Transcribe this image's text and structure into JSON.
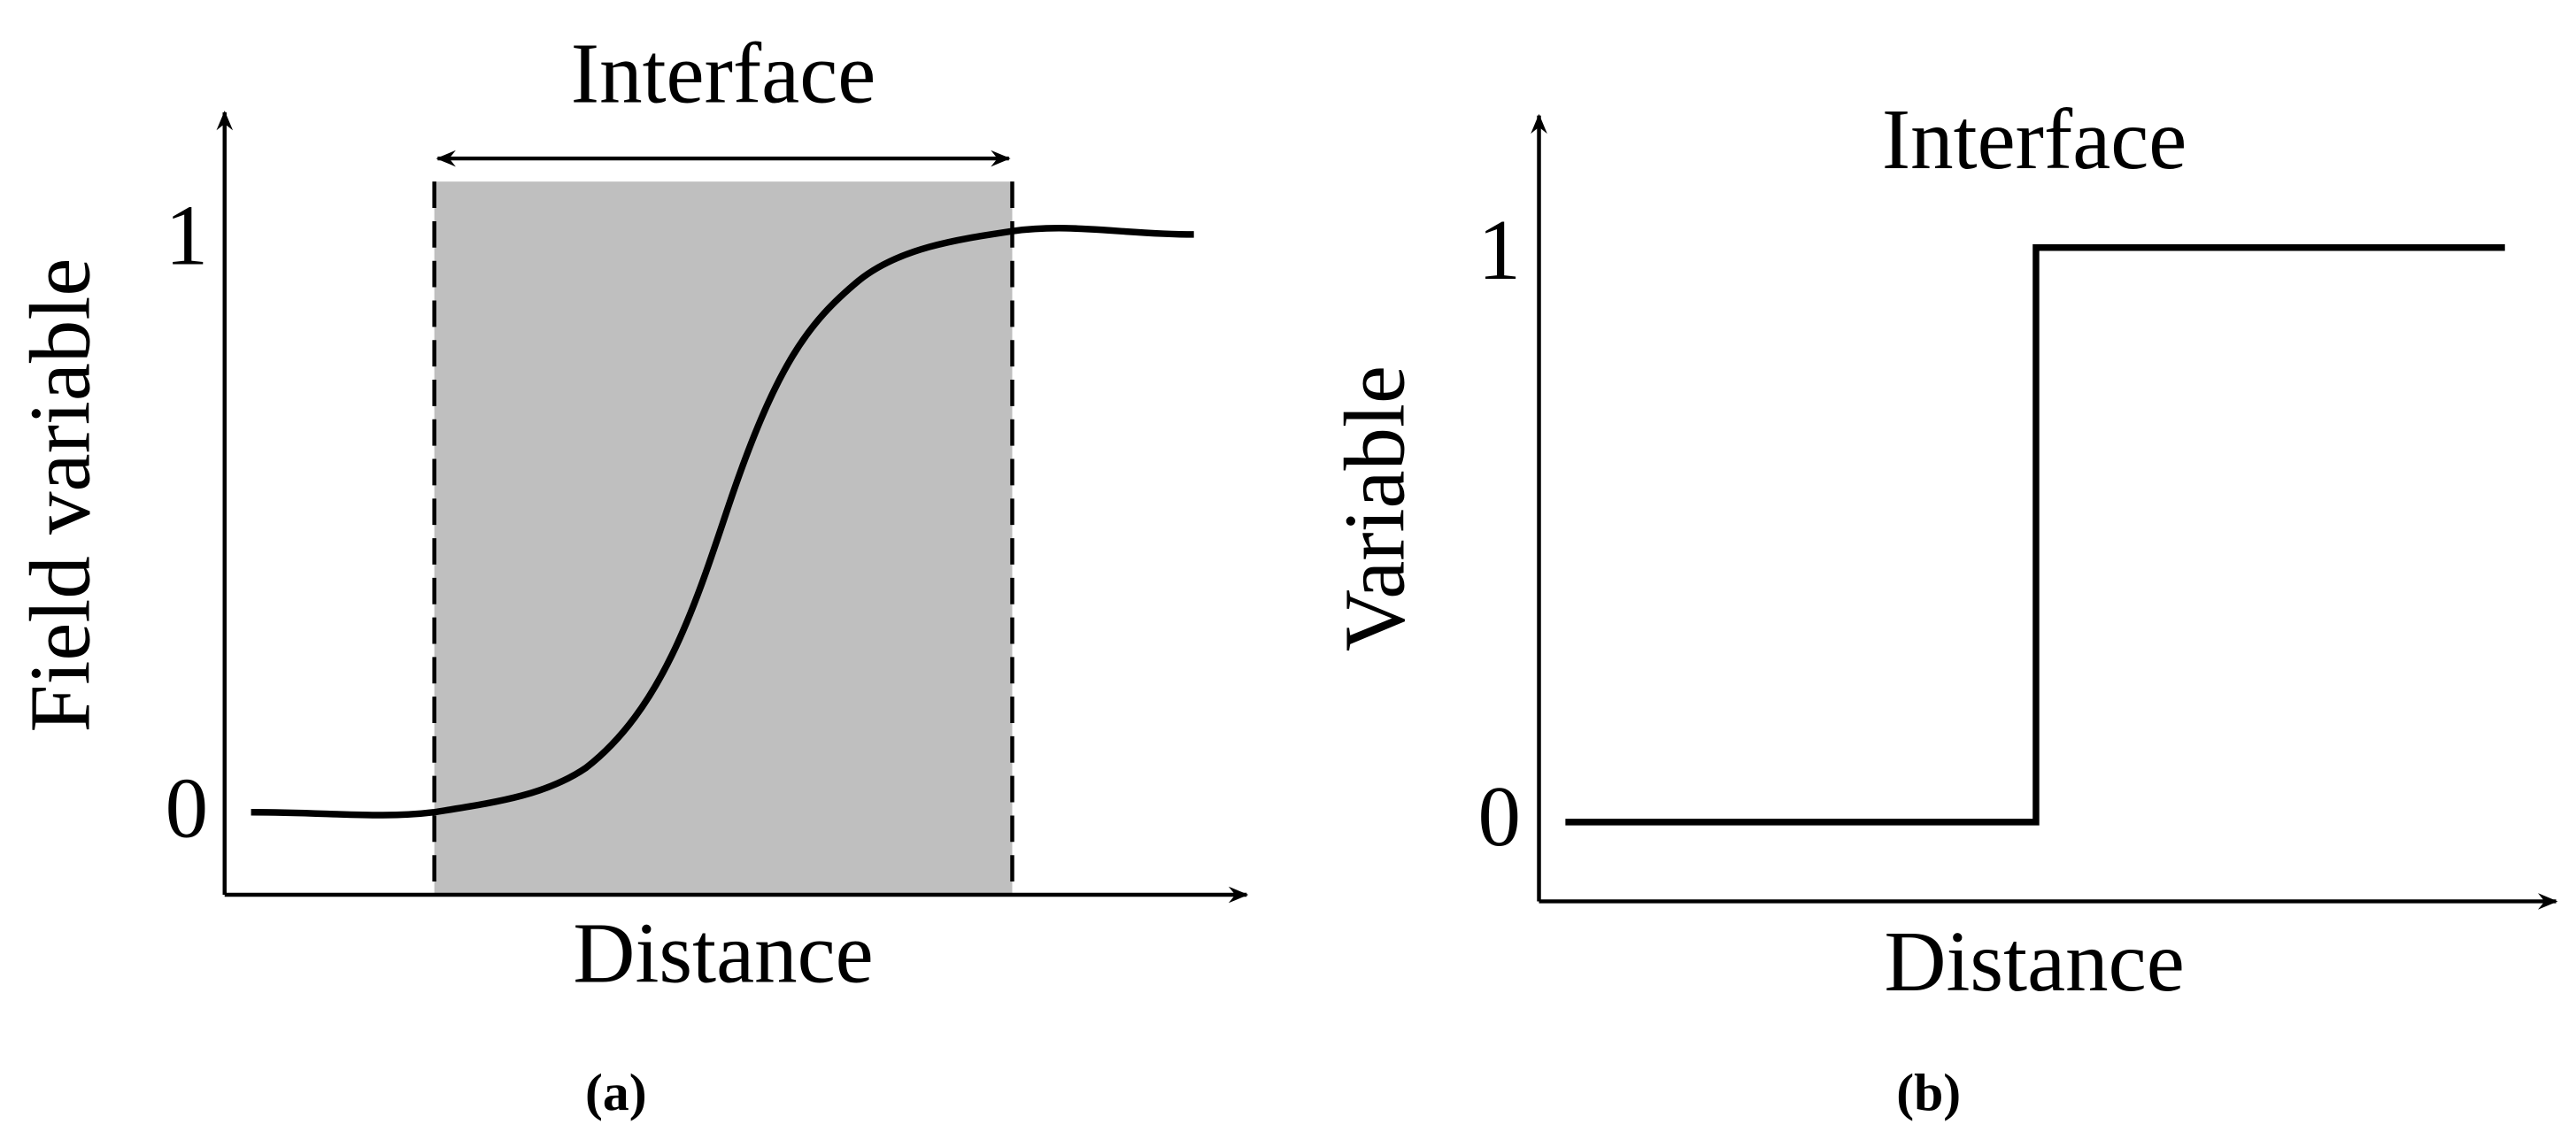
{
  "panels": [
    {
      "title": "Interface",
      "y_top": "1",
      "y_bottom": "0",
      "y_label": "Field variable",
      "x_label": "Distance",
      "caption": "(a)"
    },
    {
      "title": "Interface",
      "y_top": "1",
      "y_bottom": "0",
      "y_label": "Variable",
      "x_label": "Distance",
      "caption": "(b)"
    }
  ]
}
